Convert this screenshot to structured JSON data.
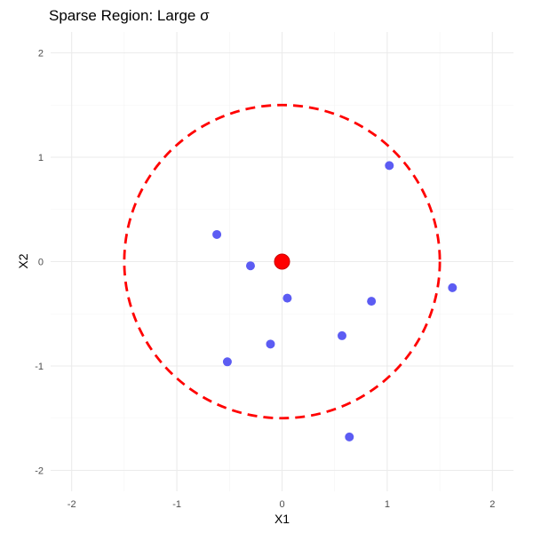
{
  "chart_data": {
    "type": "scatter",
    "title": "Sparse Region: Large σ",
    "xlabel": "X1",
    "ylabel": "X2",
    "xlim": [
      -2.2,
      2.2
    ],
    "ylim": [
      -2.2,
      2.2
    ],
    "x_ticks": [
      -2,
      -1,
      0,
      1,
      2
    ],
    "y_ticks": [
      -2,
      -1,
      0,
      1,
      2
    ],
    "x_tick_labels": [
      "-2",
      "-1",
      "0",
      "1",
      "2"
    ],
    "y_tick_labels": [
      "-2",
      "-1",
      "0",
      "1",
      "2"
    ],
    "grid": true,
    "legend": "none",
    "series": [
      {
        "color": "#4a4af2",
        "points": [
          {
            "x": 1.02,
            "y": 0.92
          },
          {
            "x": -0.62,
            "y": 0.26
          },
          {
            "x": -0.3,
            "y": -0.04
          },
          {
            "x": 0.05,
            "y": -0.35
          },
          {
            "x": 0.85,
            "y": -0.38
          },
          {
            "x": 1.62,
            "y": -0.25
          },
          {
            "x": 0.57,
            "y": -0.71
          },
          {
            "x": -0.11,
            "y": -0.79
          },
          {
            "x": -0.52,
            "y": -0.96
          },
          {
            "x": 0.64,
            "y": -1.68
          }
        ]
      },
      {
        "color": "#ff0000",
        "points": [
          {
            "x": 0.0,
            "y": 0.0
          }
        ]
      }
    ],
    "annotations": [
      {
        "type": "circle",
        "center": [
          0.0,
          0.0
        ],
        "radius": 1.5,
        "color": "#ff0000",
        "linestyle": "dashed"
      }
    ]
  }
}
